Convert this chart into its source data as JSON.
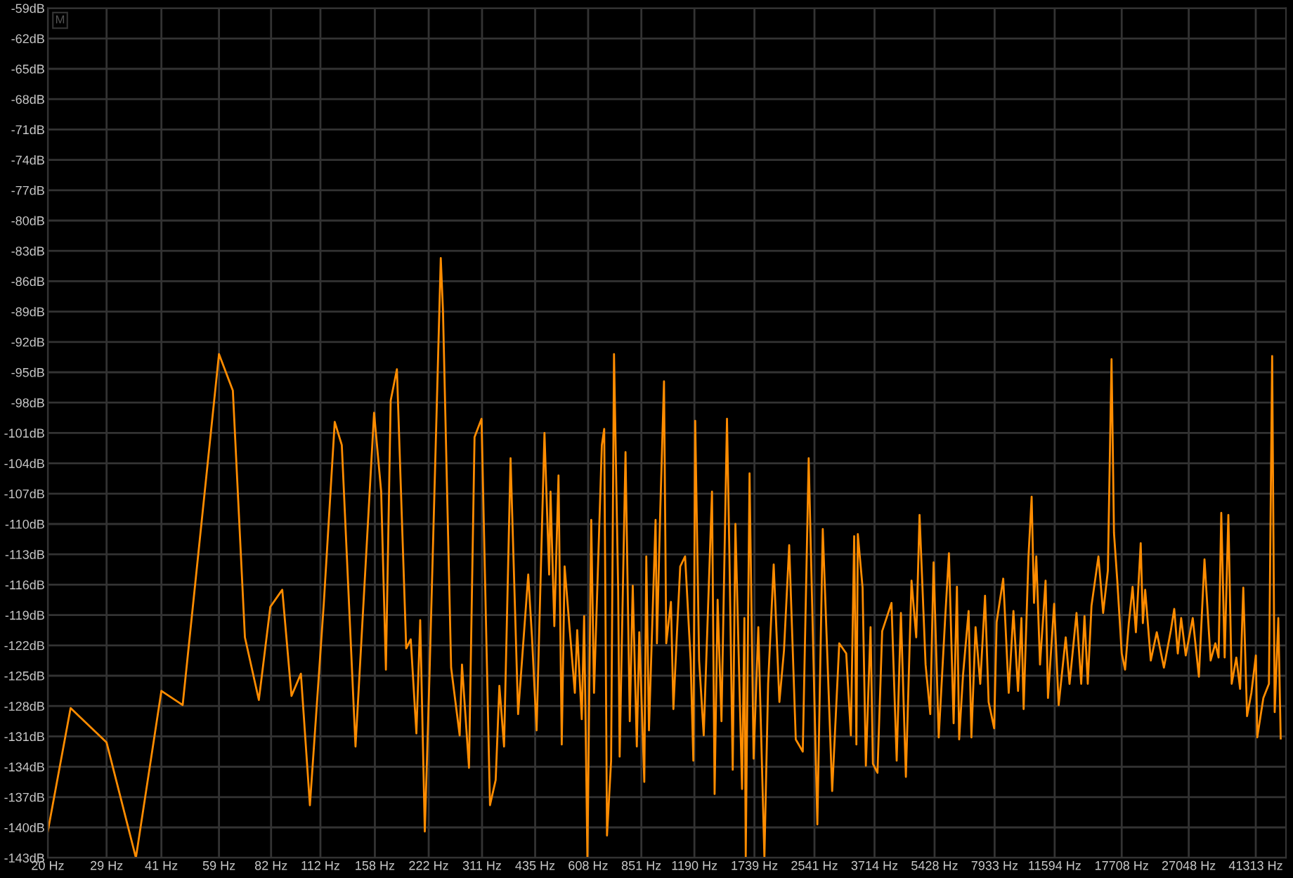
{
  "chart_data": {
    "type": "line",
    "log": "x",
    "grid": true,
    "marker": "none",
    "line_style": "solid",
    "annotations": [
      "M"
    ],
    "xlim": [
      20,
      50000
    ],
    "ylim": [
      -143,
      -59
    ],
    "xticks": [
      {
        "value": 20,
        "label": "20 Hz"
      },
      {
        "value": 29,
        "label": "29 Hz"
      },
      {
        "value": 41,
        "label": "41 Hz"
      },
      {
        "value": 59,
        "label": "59 Hz"
      },
      {
        "value": 82,
        "label": "82 Hz"
      },
      {
        "value": 112,
        "label": "112 Hz"
      },
      {
        "value": 158,
        "label": "158 Hz"
      },
      {
        "value": 222,
        "label": "222 Hz"
      },
      {
        "value": 311,
        "label": "311 Hz"
      },
      {
        "value": 435,
        "label": "435 Hz"
      },
      {
        "value": 608,
        "label": "608 Hz"
      },
      {
        "value": 851,
        "label": "851 Hz"
      },
      {
        "value": 1190,
        "label": "1190 Hz"
      },
      {
        "value": 1739,
        "label": "1739 Hz"
      },
      {
        "value": 2541,
        "label": "2541 Hz"
      },
      {
        "value": 3714,
        "label": "3714 Hz"
      },
      {
        "value": 5428,
        "label": "5428 Hz"
      },
      {
        "value": 7933,
        "label": "7933 Hz"
      },
      {
        "value": 11594,
        "label": "11594 Hz"
      },
      {
        "value": 17708,
        "label": "17708 Hz"
      },
      {
        "value": 27048,
        "label": "27048 Hz"
      },
      {
        "value": 41313,
        "label": "41313 Hz"
      }
    ],
    "yticks": [
      {
        "value": -59,
        "label": "-59dB"
      },
      {
        "value": -62,
        "label": "-62dB"
      },
      {
        "value": -65,
        "label": "-65dB"
      },
      {
        "value": -68,
        "label": "-68dB"
      },
      {
        "value": -71,
        "label": "-71dB"
      },
      {
        "value": -74,
        "label": "-74dB"
      },
      {
        "value": -77,
        "label": "-77dB"
      },
      {
        "value": -80,
        "label": "-80dB"
      },
      {
        "value": -83,
        "label": "-83dB"
      },
      {
        "value": -86,
        "label": "-86dB"
      },
      {
        "value": -89,
        "label": "-89dB"
      },
      {
        "value": -92,
        "label": "-92dB"
      },
      {
        "value": -95,
        "label": "-95dB"
      },
      {
        "value": -98,
        "label": "-98dB"
      },
      {
        "value": -101,
        "label": "-101dB"
      },
      {
        "value": -104,
        "label": "-104dB"
      },
      {
        "value": -107,
        "label": "-107dB"
      },
      {
        "value": -110,
        "label": "-110dB"
      },
      {
        "value": -113,
        "label": "-113dB"
      },
      {
        "value": -116,
        "label": "-116dB"
      },
      {
        "value": -119,
        "label": "-119dB"
      },
      {
        "value": -122,
        "label": "-122dB"
      },
      {
        "value": -125,
        "label": "-125dB"
      },
      {
        "value": -128,
        "label": "-128dB"
      },
      {
        "value": -131,
        "label": "-131dB"
      },
      {
        "value": -134,
        "label": "-134dB"
      },
      {
        "value": -137,
        "label": "-137dB"
      },
      {
        "value": -140,
        "label": "-140dB"
      },
      {
        "value": -143,
        "label": "-143dB"
      }
    ],
    "series": [
      {
        "color": "#ff8c00",
        "x": [
          20,
          23.1,
          29,
          34.9,
          41,
          46.9,
          59,
          64.4,
          69.5,
          75.9,
          81.6,
          88,
          93.3,
          99,
          104.8,
          114.4,
          122.6,
          128.2,
          139.8,
          157.2,
          164.4,
          169.4,
          174.6,
          181.6,
          192.6,
          198.2,
          205.4,
          210.4,
          216.6,
          223,
          239.6,
          243,
          255.8,
          270,
          274,
          286.4,
          296.6,
          310,
          327,
          339,
          347,
          357.4,
          372.4,
          390.6,
          416.4,
          426.4,
          439,
          461.4,
          475.2,
          479.4,
          491,
          504.2,
          514.6,
          524,
          559,
          567.4,
          584,
          592.8,
          605.2,
          620,
          631,
          663,
          673,
          685,
          703,
          716,
          735,
          742,
          770,
          791,
          806,
          827,
          840,
          867,
          878,
          893,
          912,
          931,
          939,
          959,
          982,
          996,
          1026,
          1042,
          1066,
          1088,
          1122,
          1162,
          1182,
          1196,
          1226,
          1262,
          1330,
          1352,
          1378,
          1412,
          1462,
          1484,
          1516,
          1542,
          1608,
          1632,
          1646,
          1686,
          1730,
          1782,
          1852,
          1896,
          1964,
          2036,
          2096,
          2166,
          2258,
          2360,
          2450,
          2588,
          2678,
          2842,
          2972,
          3106,
          3198,
          3266,
          3312,
          3342,
          3444,
          3516,
          3622,
          3676,
          3784,
          3898,
          4134,
          4272,
          4388,
          4528,
          4692,
          4834,
          4936,
          5128,
          5282,
          5394,
          5572,
          5804,
          5944,
          6122,
          6252,
          6340,
          6498,
          6730,
          6850,
          7032,
          7244,
          7466,
          7638,
          7910,
          8034,
          8376,
          8672,
          8934,
          9198,
          9396,
          9528,
          9826,
          10024,
          10174,
          10322,
          10568,
          10946,
          11114,
          11554,
          11890,
          12432,
          12736,
          13310,
          13710,
          13998,
          14290,
          14630,
          15286,
          15748,
          16226,
          16606,
          16866,
          17212,
          17710,
          18090,
          18522,
          18970,
          19370,
          19968,
          20240,
          20540,
          21280,
          22100,
          23120,
          24160,
          24680,
          25240,
          25780,
          26540,
          27740,
          28840,
          29880,
          31060,
          32000,
          32660,
          33220,
          33940,
          34740,
          35480,
          36540,
          37420,
          38180,
          39100,
          40180,
          41340,
          41700,
          43340,
          44900,
          45820,
          46560,
          47640,
          48360
        ],
        "values": [
          -140.4,
          -128.2,
          -131.6,
          -143,
          -126.5,
          -127.9,
          -93.2,
          -96.8,
          -121.2,
          -127.4,
          -118.2,
          -116.5,
          -127,
          -124.8,
          -137.8,
          -117.9,
          -99.9,
          -102.2,
          -132,
          -99,
          -106.8,
          -124.4,
          -97.8,
          -94.7,
          -122.3,
          -121.4,
          -130.7,
          -119.5,
          -140.4,
          -125.3,
          -83.7,
          -89,
          -124.2,
          -130.9,
          -123.9,
          -134.1,
          -101.4,
          -99.6,
          -137.8,
          -135.3,
          -126,
          -132,
          -103.5,
          -128.8,
          -115,
          -121.2,
          -130.4,
          -101,
          -115,
          -106.8,
          -120.1,
          -105.2,
          -131.8,
          -114.2,
          -126.7,
          -120.5,
          -129.3,
          -119.1,
          -143,
          -109.6,
          -126.7,
          -102.2,
          -100.6,
          -140.8,
          -133.4,
          -93.2,
          -116.5,
          -133,
          -102.9,
          -129.5,
          -116.1,
          -132,
          -120.7,
          -135.5,
          -113.2,
          -130.4,
          -119.8,
          -109.6,
          -121.8,
          -108.7,
          -95.9,
          -121.8,
          -117.7,
          -128.3,
          -120.7,
          -114.2,
          -113.2,
          -123.5,
          -133.4,
          -99.8,
          -123.5,
          -130.9,
          -106.8,
          -136.7,
          -117.5,
          -129.5,
          -99.6,
          -112.6,
          -134.3,
          -110,
          -136.2,
          -119.3,
          -143,
          -105,
          -133.2,
          -120.2,
          -143,
          -125.8,
          -114,
          -127.6,
          -122.5,
          -112.1,
          -131.3,
          -132.5,
          -103.5,
          -139.7,
          -110.5,
          -136.4,
          -121.8,
          -122.8,
          -130.9,
          -111.2,
          -131.8,
          -111,
          -116.3,
          -133.9,
          -120.2,
          -133.7,
          -134.6,
          -120.6,
          -117.8,
          -133.4,
          -118.8,
          -135,
          -115.6,
          -121.2,
          -109.1,
          -123.9,
          -128.8,
          -113.8,
          -131.1,
          -119.3,
          -112.9,
          -129.7,
          -116.2,
          -131.3,
          -124.9,
          -118.6,
          -131.1,
          -120.2,
          -125.8,
          -117.1,
          -127.6,
          -130.2,
          -119.7,
          -115.4,
          -126.7,
          -118.6,
          -126.5,
          -119.3,
          -128.3,
          -113.2,
          -107.3,
          -117.8,
          -113.2,
          -123.9,
          -115.6,
          -127.2,
          -117.9,
          -127.9,
          -121.2,
          -125.8,
          -118.8,
          -125.8,
          -119.1,
          -125.8,
          -118.1,
          -113.2,
          -118.8,
          -114.6,
          -93.7,
          -110.9,
          -115.5,
          -122.8,
          -124.4,
          -119.8,
          -116.2,
          -120.7,
          -111.9,
          -119.8,
          -116.5,
          -123.5,
          -120.7,
          -124.2,
          -120.5,
          -118.4,
          -122.8,
          -119.3,
          -123,
          -119.3,
          -125.1,
          -113.5,
          -123.5,
          -121.8,
          -123.2,
          -108.9,
          -123.2,
          -109.1,
          -125.8,
          -123.2,
          -126.3,
          -116.3,
          -129,
          -126.7,
          -123,
          -131.1,
          -127.2,
          -125.8,
          -93.4,
          -128.6,
          -119.3,
          -131.2
        ]
      }
    ]
  }
}
